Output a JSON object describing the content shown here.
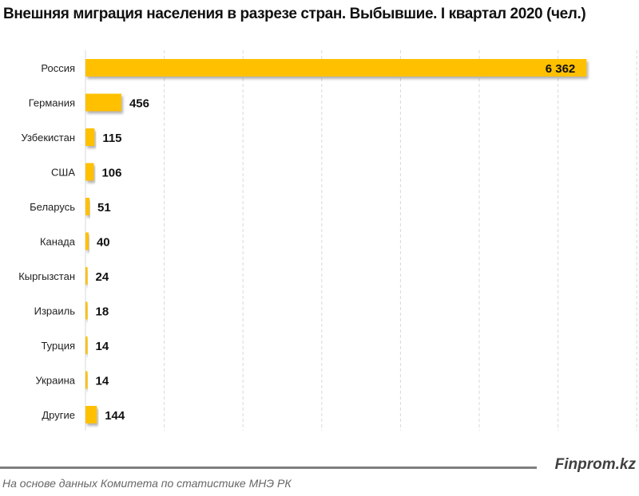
{
  "chart_data": {
    "type": "bar",
    "orientation": "horizontal",
    "title": "Внешняя миграция населения в разрезе стран. Выбывшие. I квартал 2020 (чел.)",
    "categories": [
      "Россия",
      "Германия",
      "Узбекистан",
      "США",
      "Беларусь",
      "Канада",
      "Кыргызстан",
      "Израиль",
      "Турция",
      "Украина",
      "Другие"
    ],
    "values": [
      6362,
      456,
      115,
      106,
      51,
      40,
      24,
      18,
      14,
      14,
      144
    ],
    "value_labels": [
      "6 362",
      "456",
      "115",
      "106",
      "51",
      "40",
      "24",
      "18",
      "14",
      "14",
      "144"
    ],
    "xlim": [
      0,
      7000
    ],
    "grid": true,
    "bar_color": "#ffc000",
    "xlabel": "",
    "ylabel": ""
  },
  "footer": {
    "brand": "Finprom.kz",
    "source": "На основе данных  Комитета по статистике МНЭ РК"
  }
}
